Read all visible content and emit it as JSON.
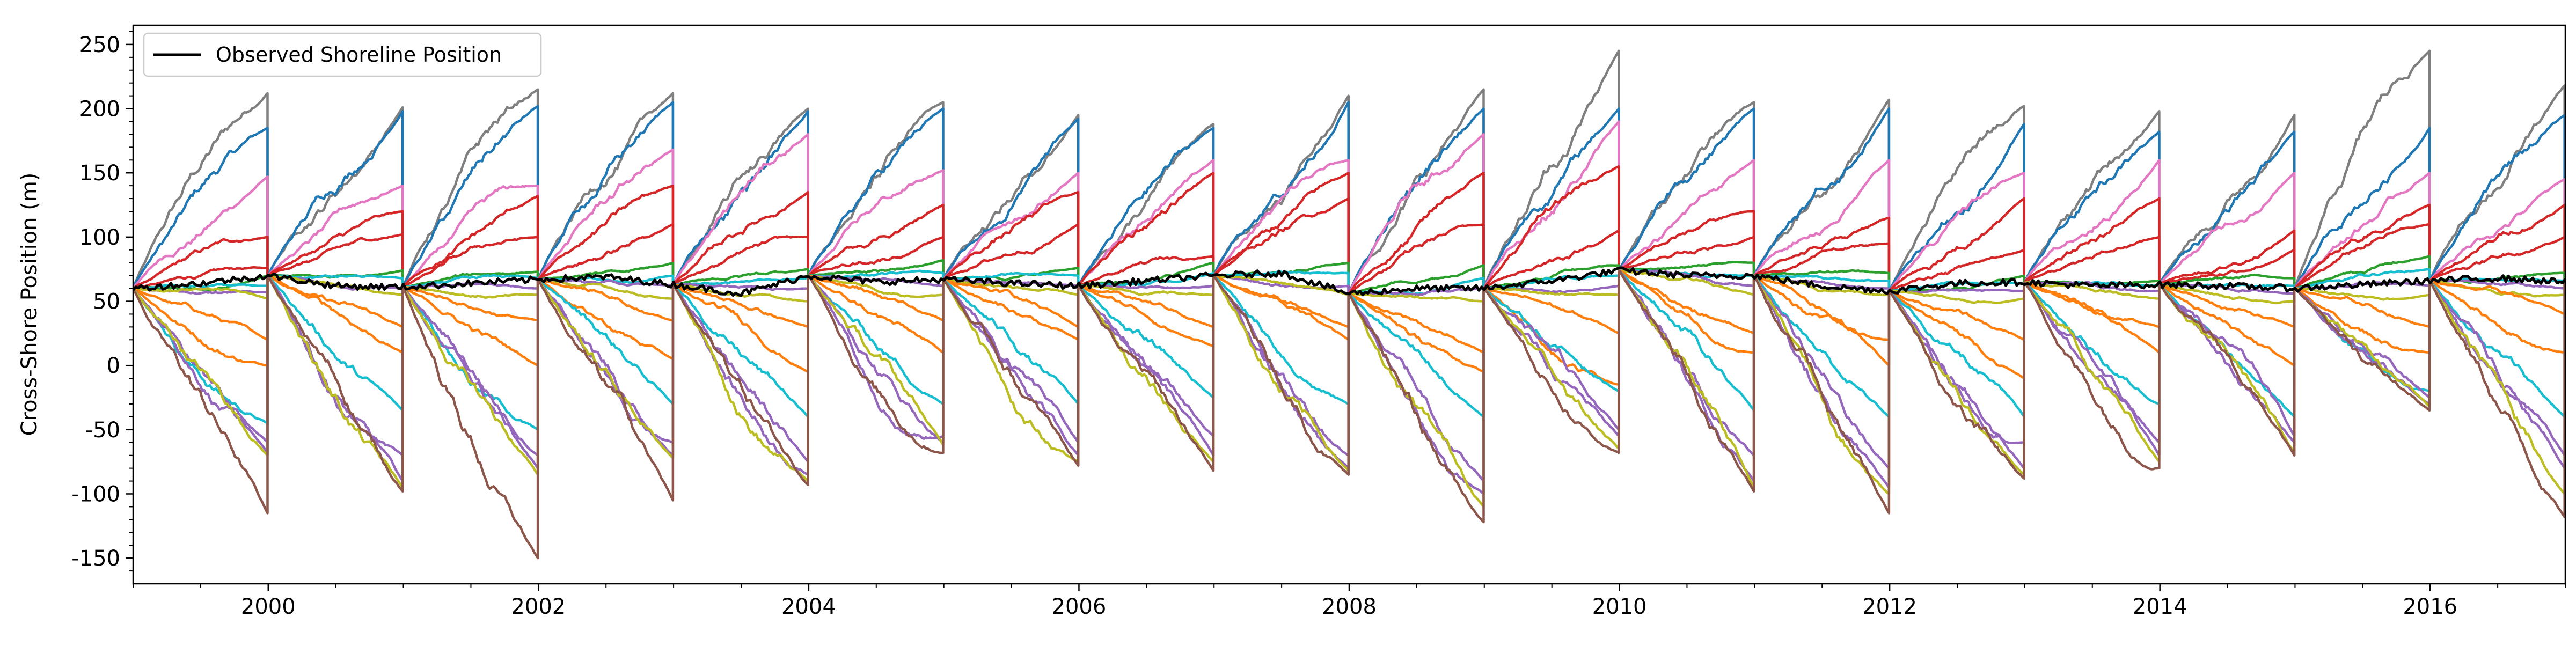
{
  "chart_data": {
    "type": "line",
    "title": "",
    "xlabel": "",
    "ylabel": "Cross-Shore Position (m)",
    "xlim": [
      1999.0,
      2017.0
    ],
    "ylim": [
      -170,
      265
    ],
    "x_ticks": [
      2000,
      2002,
      2004,
      2006,
      2008,
      2010,
      2012,
      2014,
      2016
    ],
    "y_ticks": [
      -150,
      -100,
      -50,
      0,
      50,
      100,
      150,
      200,
      250
    ],
    "grid": false,
    "legend": {
      "placement": "top-left",
      "entries": [
        "Observed Shoreline Position"
      ]
    },
    "observed_series": {
      "name": "Observed Shoreline Position",
      "color": "#000000",
      "points": [
        [
          1999.0,
          60
        ],
        [
          1999.5,
          64
        ],
        [
          2000.0,
          70
        ],
        [
          2000.5,
          62
        ],
        [
          2001.0,
          61
        ],
        [
          2001.5,
          64
        ],
        [
          2002.0,
          67
        ],
        [
          2002.5,
          69
        ],
        [
          2003.0,
          63
        ],
        [
          2003.5,
          56
        ],
        [
          2004.0,
          70
        ],
        [
          2004.5,
          65
        ],
        [
          2005.0,
          67
        ],
        [
          2005.5,
          64
        ],
        [
          2006.0,
          62
        ],
        [
          2006.5,
          66
        ],
        [
          2007.0,
          70
        ],
        [
          2007.5,
          72
        ],
        [
          2008.0,
          56
        ],
        [
          2008.5,
          60
        ],
        [
          2009.0,
          60
        ],
        [
          2009.5,
          66
        ],
        [
          2010.0,
          74
        ],
        [
          2010.5,
          70
        ],
        [
          2011.0,
          70
        ],
        [
          2011.5,
          62
        ],
        [
          2012.0,
          58
        ],
        [
          2012.5,
          64
        ],
        [
          2013.0,
          65
        ],
        [
          2013.5,
          62
        ],
        [
          2014.0,
          63
        ],
        [
          2014.5,
          62
        ],
        [
          2015.0,
          60
        ],
        [
          2015.5,
          63
        ],
        [
          2016.0,
          66
        ],
        [
          2016.5,
          68
        ],
        [
          2017.0,
          65
        ]
      ]
    },
    "ensemble": {
      "description_years": "Each ensemble forecast restarts at 1 January of each year from the observed position and runs to the following 1 January.",
      "start_years": [
        1999,
        2000,
        2001,
        2002,
        2003,
        2004,
        2005,
        2006,
        2007,
        2008,
        2009,
        2010,
        2011,
        2012,
        2013,
        2014,
        2015,
        2016
      ],
      "endpoints_by_year": [
        [
          212,
          185,
          147,
          100,
          76,
          70,
          62,
          57,
          52,
          20,
          0,
          -45,
          -60,
          -68,
          -70,
          -115
        ],
        [
          201,
          198,
          140,
          120,
          102,
          74,
          68,
          60,
          55,
          30,
          10,
          -35,
          -70,
          -90,
          -95,
          -98
        ],
        [
          215,
          202,
          140,
          132,
          100,
          73,
          68,
          60,
          55,
          35,
          0,
          -50,
          -70,
          -80,
          -85,
          -150
        ],
        [
          212,
          205,
          168,
          140,
          110,
          80,
          70,
          62,
          52,
          35,
          5,
          -30,
          -60,
          -70,
          -72,
          -105
        ],
        [
          200,
          198,
          180,
          135,
          100,
          75,
          68,
          60,
          50,
          30,
          -5,
          -40,
          -75,
          -85,
          -90,
          -93
        ],
        [
          205,
          200,
          152,
          125,
          100,
          82,
          72,
          62,
          55,
          35,
          10,
          -30,
          -55,
          -60,
          -62,
          -68
        ],
        [
          195,
          192,
          150,
          135,
          110,
          76,
          70,
          62,
          55,
          30,
          20,
          -30,
          -60,
          -70,
          -75,
          -78
        ],
        [
          188,
          185,
          160,
          150,
          85,
          80,
          72,
          62,
          55,
          30,
          15,
          -25,
          -55,
          -70,
          -75,
          -82
        ],
        [
          210,
          205,
          160,
          150,
          130,
          80,
          72,
          62,
          55,
          30,
          20,
          -30,
          -70,
          -80,
          -82,
          -85
        ],
        [
          215,
          200,
          180,
          150,
          110,
          78,
          68,
          60,
          50,
          10,
          -5,
          -40,
          -90,
          -100,
          -110,
          -122
        ],
        [
          245,
          200,
          190,
          155,
          105,
          78,
          70,
          62,
          55,
          25,
          -15,
          -20,
          -50,
          -55,
          -65,
          -68
        ],
        [
          205,
          200,
          160,
          120,
          100,
          80,
          70,
          62,
          55,
          25,
          10,
          -35,
          -70,
          -90,
          -95,
          -98
        ],
        [
          207,
          200,
          160,
          115,
          95,
          72,
          66,
          60,
          55,
          20,
          0,
          -40,
          -80,
          -95,
          -100,
          -115
        ],
        [
          202,
          188,
          150,
          130,
          90,
          70,
          64,
          58,
          52,
          20,
          -10,
          -40,
          -60,
          -80,
          -85,
          -88
        ],
        [
          198,
          182,
          160,
          130,
          100,
          66,
          62,
          58,
          52,
          30,
          10,
          -30,
          -60,
          -70,
          -75,
          -80
        ],
        [
          195,
          182,
          150,
          105,
          90,
          68,
          62,
          56,
          50,
          30,
          0,
          -40,
          -55,
          -60,
          -68,
          -70
        ],
        [
          245,
          185,
          150,
          125,
          110,
          85,
          75,
          62,
          55,
          30,
          10,
          -20,
          -25,
          -30,
          -32,
          -35
        ],
        [
          218,
          195,
          145,
          125,
          100,
          72,
          66,
          60,
          55,
          40,
          10,
          -40,
          -70,
          -80,
          -100,
          -118
        ]
      ],
      "member_colors": [
        "#7f7f7f",
        "#1f77b4",
        "#e377c2",
        "#d62728",
        "#d62728",
        "#2ca02c",
        "#17becf",
        "#9467bd",
        "#bcbd22",
        "#ff7f0e",
        "#ff7f0e",
        "#17becf",
        "#9467bd",
        "#9467bd",
        "#bcbd22",
        "#8c564b"
      ]
    }
  }
}
